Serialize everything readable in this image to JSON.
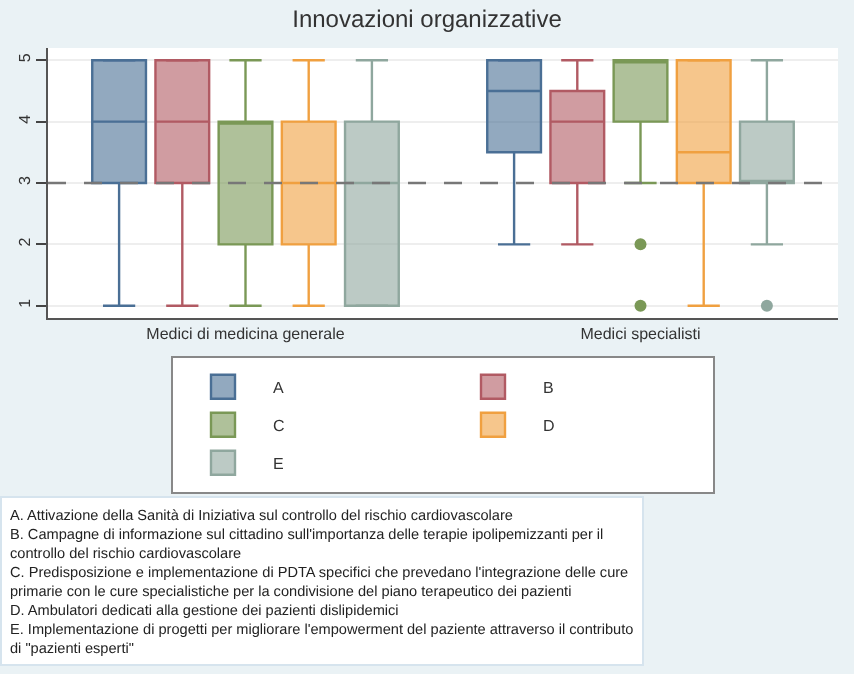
{
  "chart_data": {
    "type": "box",
    "title": "Innovazioni organizzative",
    "categories": [
      "Medici di medicina generale",
      "Medici specialisti"
    ],
    "series": [
      {
        "name": "A",
        "color": "#4a6f95",
        "boxes": [
          {
            "low": 1,
            "q1": 3,
            "median": 4,
            "q3": 5,
            "high": 5
          },
          {
            "low": 2,
            "q1": 3.5,
            "median": 4.5,
            "q3": 5,
            "high": 5
          }
        ]
      },
      {
        "name": "B",
        "color": "#b15a63",
        "boxes": [
          {
            "low": 1,
            "q1": 3,
            "median": 4,
            "q3": 5,
            "high": 5
          },
          {
            "low": 2,
            "q1": 3,
            "median": 4,
            "q3": 4.5,
            "high": 5
          }
        ]
      },
      {
        "name": "C",
        "color": "#7a9856",
        "boxes": [
          {
            "low": 1,
            "q1": 2,
            "median": 4,
            "q3": 4,
            "high": 5
          },
          {
            "low": 3,
            "q1": 4,
            "median": 5,
            "q3": 5,
            "high": 5,
            "outliers": [
              2,
              1
            ]
          }
        ]
      },
      {
        "name": "D",
        "color": "#f0a040",
        "boxes": [
          {
            "low": 1,
            "q1": 2,
            "median": 3,
            "q3": 4,
            "high": 5
          },
          {
            "low": 1,
            "q1": 3,
            "median": 3.5,
            "q3": 5,
            "high": 5
          }
        ]
      },
      {
        "name": "E",
        "color": "#8fa79e",
        "boxes": [
          {
            "low": 1,
            "q1": 1,
            "median": 3,
            "q3": 4,
            "high": 5
          },
          {
            "low": 2,
            "q1": 3,
            "median": 3,
            "q3": 4,
            "high": 5,
            "outliers": [
              1
            ]
          }
        ]
      }
    ],
    "ylim": [
      0.8,
      5.2
    ],
    "yticks": [
      1,
      2,
      3,
      4,
      5
    ],
    "grid": "y",
    "legend": "bottom",
    "ref_lines": [
      {
        "axis": "y",
        "value": 3,
        "color": "#777777",
        "line_style": "dashed"
      }
    ],
    "annotations": [
      "A. Attivazione della Sanità di Iniziativa sul controllo del rischio cardiovascolare",
      "B. Campagne di informazione sul cittadino sull'importanza delle terapie ipolipemizzanti per il controllo del rischio cardiovascolare",
      "C. Predisposizione e implementazione di PDTA specifici che prevedano l'integrazione delle cure primarie con le cure specialistiche per la condivisione del piano terapeutico dei pazienti",
      "D. Ambulatori dedicati alla gestione dei pazienti dislipidemici",
      "E. Implementazione di progetti per migliorare l'empowerment del paziente attraverso il contributo di \"pazienti esperti\""
    ]
  }
}
